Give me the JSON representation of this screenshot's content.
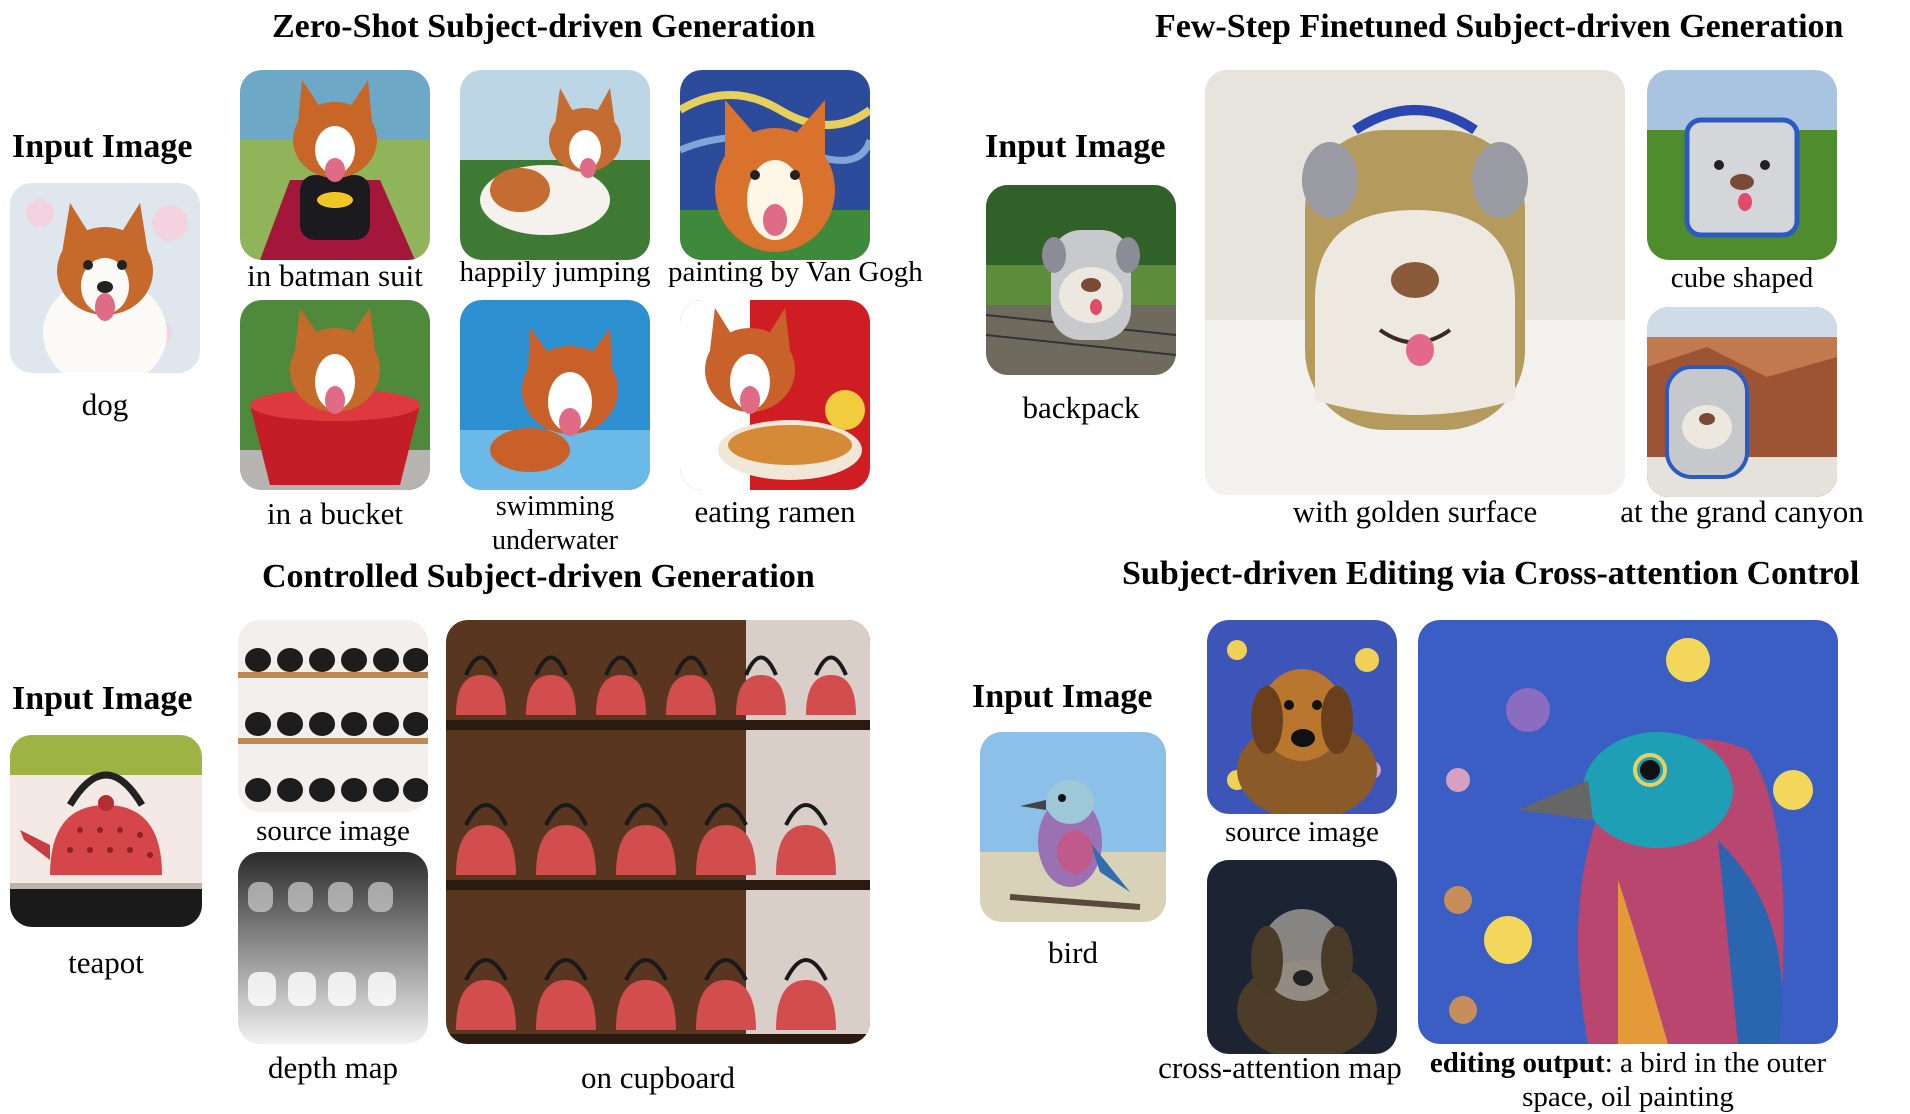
{
  "panels": {
    "zero_shot": {
      "title": "Zero-Shot Subject-driven Generation",
      "input_label": "Input Image",
      "input_caption": "dog",
      "outputs": [
        "in batman suit",
        "happily jumping",
        "painting by Van Gogh",
        "in a bucket",
        "swimming underwater",
        "eating ramen"
      ]
    },
    "few_step": {
      "title": "Few-Step Finetuned Subject-driven Generation",
      "input_label": "Input Image",
      "input_caption": "backpack",
      "outputs": [
        "with golden surface",
        "cube shaped",
        "at the grand canyon"
      ]
    },
    "controlled": {
      "title": "Controlled Subject-driven Generation",
      "input_label": "Input Image",
      "input_caption": "teapot",
      "outputs": [
        "source image",
        "depth map",
        "on cupboard"
      ]
    },
    "editing": {
      "title": "Subject-driven Editing via Cross-attention Control",
      "input_label": "Input Image",
      "input_caption": "bird",
      "outputs": [
        "source image",
        "cross-attention map"
      ],
      "final_bold": "editing output",
      "final_rest": ": a bird in the outer space, oil painting"
    }
  },
  "icons": {
    "dog": "dog-photo",
    "backpack": "backpack-photo",
    "teapot": "teapot-photo",
    "bird": "bird-photo"
  }
}
